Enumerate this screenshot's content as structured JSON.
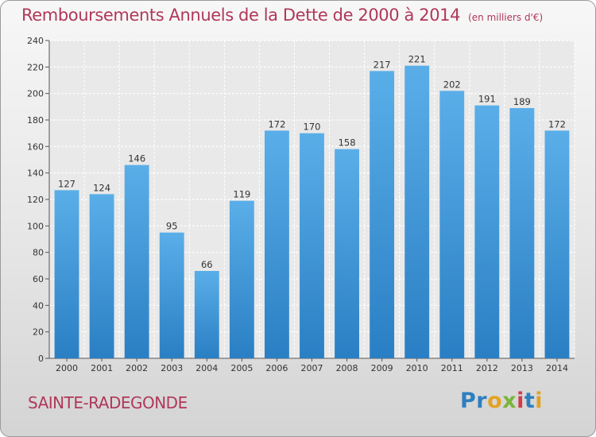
{
  "title": "Remboursements Annuels de la Dette de 2000 à 2014",
  "unit_note": "(en milliers d'€)",
  "place_name": "SAINTE-RADEGONDE",
  "logo": {
    "parts": [
      "Pr",
      "o",
      "x",
      "i",
      "t",
      "i"
    ]
  },
  "colors": {
    "title": "#b0385a",
    "bar_top": "#5aaee8",
    "bar_bottom": "#2a7fc4"
  },
  "chart_data": {
    "type": "bar",
    "categories": [
      "2000",
      "2001",
      "2002",
      "2003",
      "2004",
      "2005",
      "2006",
      "2007",
      "2008",
      "2009",
      "2010",
      "2011",
      "2012",
      "2013",
      "2014"
    ],
    "values": [
      127,
      124,
      146,
      95,
      66,
      119,
      172,
      170,
      158,
      217,
      221,
      202,
      191,
      189,
      172
    ],
    "title": "Remboursements Annuels de la Dette de 2000 à 2014",
    "xlabel": "",
    "ylabel": "",
    "ylim": [
      0,
      240
    ],
    "yticks": [
      0,
      20,
      40,
      60,
      80,
      100,
      120,
      140,
      160,
      180,
      200,
      220,
      240
    ],
    "grid": true,
    "legend": "none"
  }
}
